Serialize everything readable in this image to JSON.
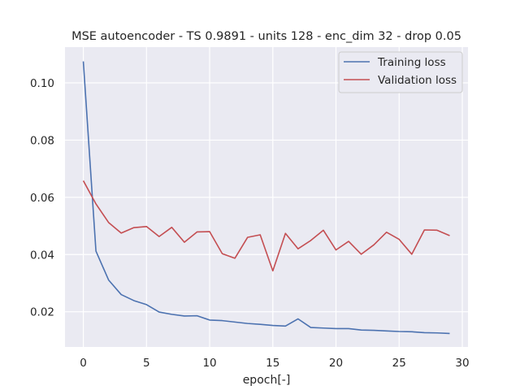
{
  "chart_data": {
    "type": "line",
    "title": "MSE autoencoder - TS 0.9891 - units 128 - enc_dim 32 - drop 0.05",
    "xlabel": "epoch[-]",
    "ylabel": "",
    "xlim": [
      -1.45,
      30.45
    ],
    "ylim": [
      0.0077,
      0.1125
    ],
    "xticks": [
      0,
      5,
      10,
      15,
      20,
      25,
      30
    ],
    "yticks": [
      0.02,
      0.04,
      0.06,
      0.08,
      0.1
    ],
    "ytick_labels": [
      "0.02",
      "0.04",
      "0.06",
      "0.08",
      "0.10"
    ],
    "grid": true,
    "legend_position": "upper right",
    "x": [
      0,
      1,
      2,
      3,
      4,
      5,
      6,
      7,
      8,
      9,
      10,
      11,
      12,
      13,
      14,
      15,
      16,
      17,
      18,
      19,
      20,
      21,
      22,
      23,
      24,
      25,
      26,
      27,
      28,
      29
    ],
    "series": [
      {
        "name": "Training loss",
        "color": "#4c72b0",
        "values": [
          0.1075,
          0.0412,
          0.0311,
          0.026,
          0.0239,
          0.0225,
          0.0199,
          0.0191,
          0.0185,
          0.0186,
          0.0171,
          0.0169,
          0.0164,
          0.0159,
          0.0156,
          0.0152,
          0.015,
          0.0175,
          0.0145,
          0.0143,
          0.0141,
          0.0141,
          0.0136,
          0.0135,
          0.0133,
          0.0131,
          0.013,
          0.0127,
          0.0126,
          0.0124
        ]
      },
      {
        "name": "Validation loss",
        "color": "#c44e52",
        "values": [
          0.0658,
          0.0577,
          0.0512,
          0.0475,
          0.0494,
          0.0498,
          0.0463,
          0.0495,
          0.0443,
          0.0479,
          0.048,
          0.0403,
          0.0387,
          0.046,
          0.0469,
          0.0343,
          0.0474,
          0.042,
          0.0449,
          0.0485,
          0.0416,
          0.0446,
          0.0401,
          0.0434,
          0.0478,
          0.0453,
          0.0401,
          0.0486,
          0.0485,
          0.0466
        ]
      }
    ]
  }
}
